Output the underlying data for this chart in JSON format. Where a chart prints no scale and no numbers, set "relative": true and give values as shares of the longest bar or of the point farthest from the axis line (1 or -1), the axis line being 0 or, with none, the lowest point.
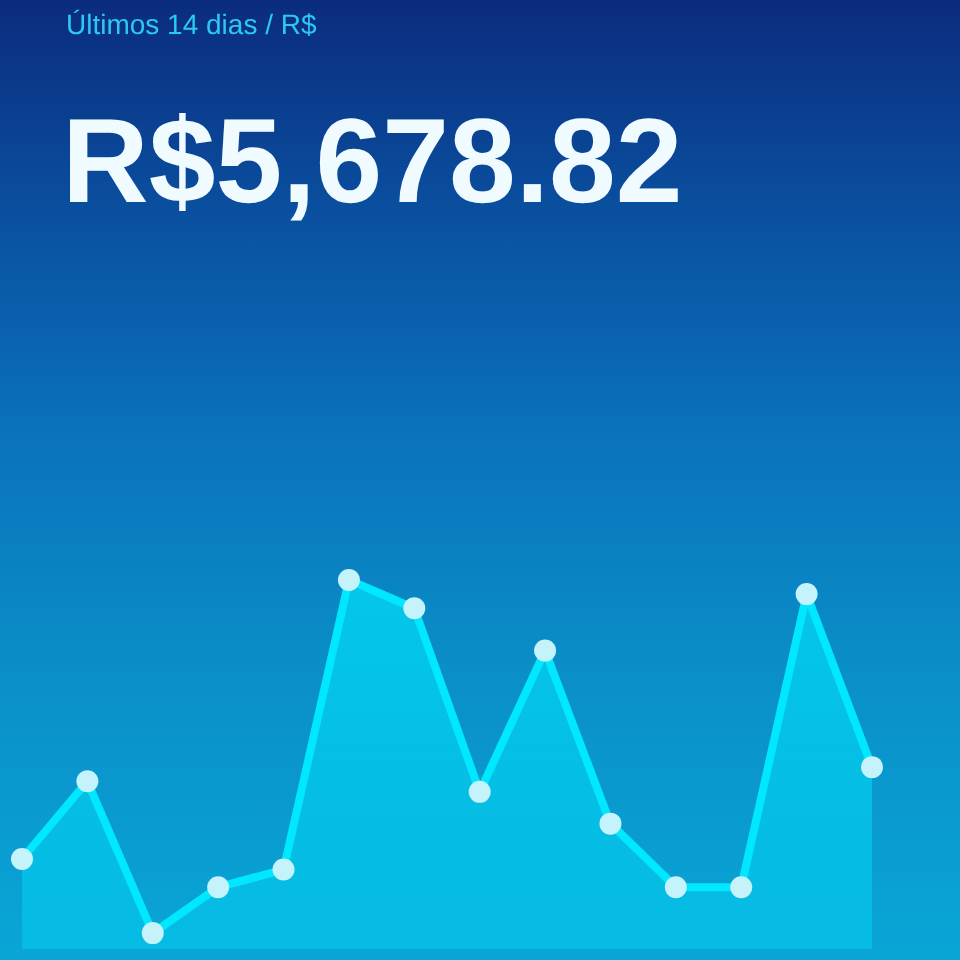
{
  "chart_data": {
    "type": "area",
    "title": "Últimos 14 dias / R$",
    "subtitle": "R$5,678.82",
    "categories": [
      null,
      null,
      null,
      null,
      null,
      null,
      null,
      null,
      null,
      null,
      null,
      null,
      null,
      null
    ],
    "series": [
      {
        "color": "#00e8ff",
        "values": [
          0.21,
          0.43,
          0,
          0.13,
          0.18,
          1,
          0.92,
          0.4,
          0.8,
          0.31,
          0.13,
          0.13,
          0.96,
          0.47
        ]
      }
    ],
    "relative": true,
    "marker": "circle"
  }
}
